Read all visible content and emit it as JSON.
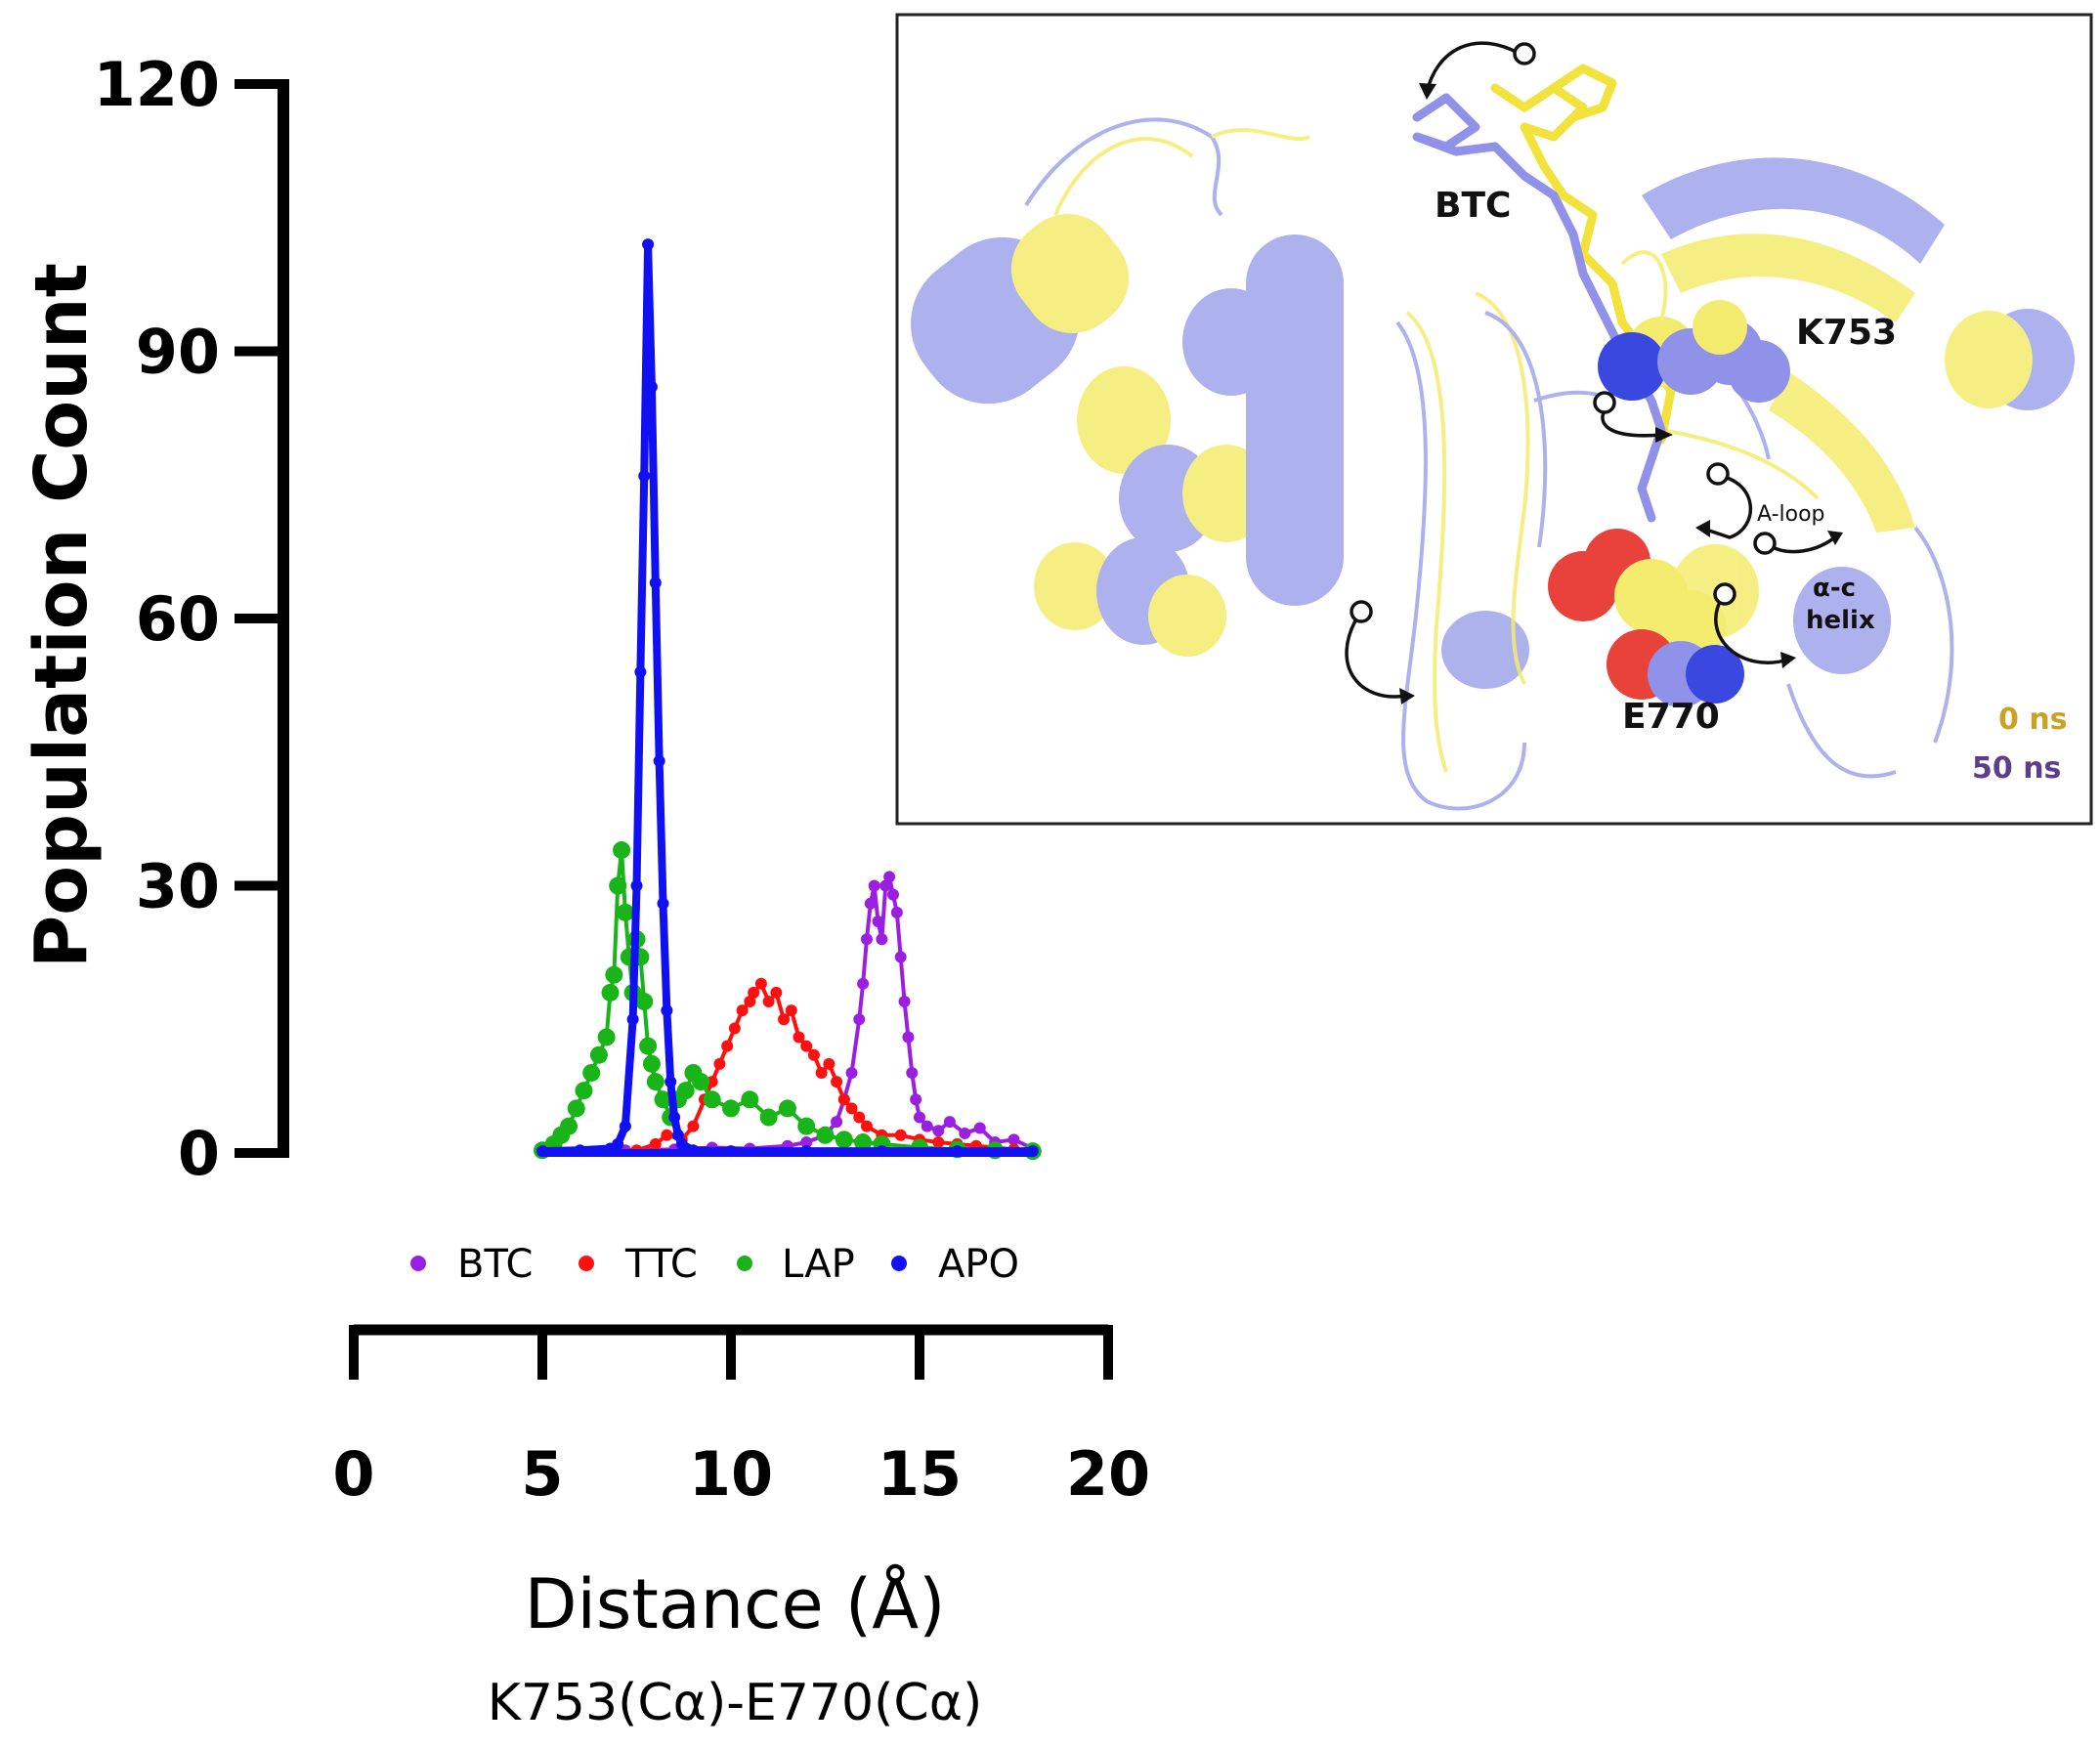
{
  "chart_data": {
    "type": "scatter",
    "ylabel": "Population Count",
    "xlabel": "Distance (Å)",
    "xlabel_sub": "K753(Cα)-E770(Cα)",
    "xlim": [
      0,
      20
    ],
    "ylim": [
      0,
      120
    ],
    "xticks": [
      "0",
      "5",
      "10",
      "15",
      "20"
    ],
    "yticks": [
      "0",
      "30",
      "60",
      "90",
      "120"
    ],
    "grid": false,
    "legend_position": "below plot",
    "series": [
      {
        "name": "BTC",
        "color": "#9b1fe0",
        "points": [
          [
            7.2,
            0.3
          ],
          [
            8.5,
            0.4
          ],
          [
            9.5,
            0.6
          ],
          [
            10.5,
            0.5
          ],
          [
            11.5,
            0.8
          ],
          [
            12.0,
            1.2
          ],
          [
            12.5,
            2.0
          ],
          [
            12.8,
            3.5
          ],
          [
            13.0,
            6
          ],
          [
            13.2,
            9
          ],
          [
            13.4,
            15
          ],
          [
            13.5,
            19
          ],
          [
            13.6,
            24
          ],
          [
            13.7,
            28
          ],
          [
            13.8,
            30
          ],
          [
            13.9,
            26
          ],
          [
            14.0,
            24
          ],
          [
            14.1,
            30
          ],
          [
            14.2,
            31
          ],
          [
            14.3,
            29
          ],
          [
            14.4,
            27
          ],
          [
            14.5,
            22
          ],
          [
            14.6,
            17
          ],
          [
            14.7,
            13
          ],
          [
            14.8,
            9
          ],
          [
            14.9,
            6
          ],
          [
            15.0,
            4
          ],
          [
            15.2,
            3
          ],
          [
            15.5,
            2.5
          ],
          [
            15.8,
            3.5
          ],
          [
            16.2,
            2.2
          ],
          [
            16.6,
            2.8
          ],
          [
            17.0,
            1.2
          ],
          [
            17.5,
            1.5
          ],
          [
            18.0,
            0.5
          ]
        ]
      },
      {
        "name": "TTC",
        "color": "#ff1010",
        "points": [
          [
            7.5,
            0.3
          ],
          [
            8.0,
            1
          ],
          [
            8.3,
            2
          ],
          [
            8.7,
            1.5
          ],
          [
            9.0,
            3
          ],
          [
            9.3,
            6
          ],
          [
            9.5,
            8
          ],
          [
            9.7,
            10
          ],
          [
            9.9,
            12
          ],
          [
            10.1,
            14
          ],
          [
            10.3,
            16
          ],
          [
            10.5,
            17
          ],
          [
            10.6,
            18
          ],
          [
            10.8,
            19
          ],
          [
            11.0,
            17
          ],
          [
            11.2,
            18
          ],
          [
            11.4,
            15
          ],
          [
            11.6,
            16
          ],
          [
            11.8,
            13
          ],
          [
            12.0,
            12
          ],
          [
            12.2,
            11
          ],
          [
            12.4,
            9
          ],
          [
            12.6,
            10
          ],
          [
            12.8,
            8
          ],
          [
            13.0,
            6
          ],
          [
            13.2,
            5
          ],
          [
            13.4,
            4
          ],
          [
            13.6,
            3
          ],
          [
            14.0,
            2
          ],
          [
            14.5,
            2
          ],
          [
            15.0,
            1.5
          ],
          [
            15.5,
            1.2
          ],
          [
            16.0,
            1
          ],
          [
            16.5,
            0.8
          ],
          [
            17.0,
            0.6
          ],
          [
            17.5,
            0.4
          ],
          [
            18.0,
            0.3
          ]
        ]
      },
      {
        "name": "LAP",
        "color": "#18b418",
        "points": [
          [
            5.0,
            0.3
          ],
          [
            5.3,
            1
          ],
          [
            5.5,
            2
          ],
          [
            5.7,
            3
          ],
          [
            5.9,
            5
          ],
          [
            6.1,
            7
          ],
          [
            6.3,
            9
          ],
          [
            6.5,
            11
          ],
          [
            6.7,
            13
          ],
          [
            6.8,
            18
          ],
          [
            6.9,
            20
          ],
          [
            7.0,
            30
          ],
          [
            7.1,
            34
          ],
          [
            7.2,
            27
          ],
          [
            7.3,
            22
          ],
          [
            7.4,
            18
          ],
          [
            7.5,
            24
          ],
          [
            7.6,
            22
          ],
          [
            7.7,
            17
          ],
          [
            7.8,
            12
          ],
          [
            7.9,
            10
          ],
          [
            8.0,
            8
          ],
          [
            8.2,
            6
          ],
          [
            8.4,
            4
          ],
          [
            8.6,
            6
          ],
          [
            8.8,
            7
          ],
          [
            9.0,
            9
          ],
          [
            9.2,
            8
          ],
          [
            9.5,
            6
          ],
          [
            10.0,
            5
          ],
          [
            10.5,
            6
          ],
          [
            11.0,
            4
          ],
          [
            11.5,
            5
          ],
          [
            12.0,
            3
          ],
          [
            12.5,
            2
          ],
          [
            13.0,
            1.5
          ],
          [
            13.5,
            1.2
          ],
          [
            14.0,
            1
          ],
          [
            15.0,
            0.6
          ],
          [
            16.0,
            0.4
          ],
          [
            17.0,
            0.3
          ],
          [
            18.0,
            0.2
          ]
        ]
      },
      {
        "name": "APO",
        "color": "#1010f0",
        "points": [
          [
            5.0,
            0.2
          ],
          [
            6.0,
            0.3
          ],
          [
            6.8,
            0.5
          ],
          [
            7.0,
            1
          ],
          [
            7.2,
            3
          ],
          [
            7.4,
            15
          ],
          [
            7.5,
            30
          ],
          [
            7.6,
            54
          ],
          [
            7.7,
            76
          ],
          [
            7.8,
            102
          ],
          [
            7.9,
            86
          ],
          [
            8.0,
            64
          ],
          [
            8.1,
            44
          ],
          [
            8.2,
            28
          ],
          [
            8.3,
            16
          ],
          [
            8.4,
            8
          ],
          [
            8.5,
            4
          ],
          [
            8.6,
            2
          ],
          [
            8.7,
            1
          ],
          [
            9.0,
            0.3
          ],
          [
            10.0,
            0.2
          ],
          [
            12.0,
            0.2
          ],
          [
            14.0,
            0.2
          ],
          [
            16.0,
            0.2
          ],
          [
            18.0,
            0.2
          ]
        ]
      }
    ]
  },
  "inset": {
    "labels": {
      "btc": "BTC",
      "k753": "K753",
      "e770": "E770",
      "aloop": "A-loop",
      "alpha_c": "α-c",
      "helix": "helix"
    },
    "timepoints": {
      "t0": "0 ns",
      "t50": "50 ns"
    },
    "colors": {
      "state_0ns": "#f4ec6e",
      "state_50ns": "#9fa4ea",
      "oxygen": "#e8423a",
      "nitrogen": "#3a48e0"
    }
  }
}
